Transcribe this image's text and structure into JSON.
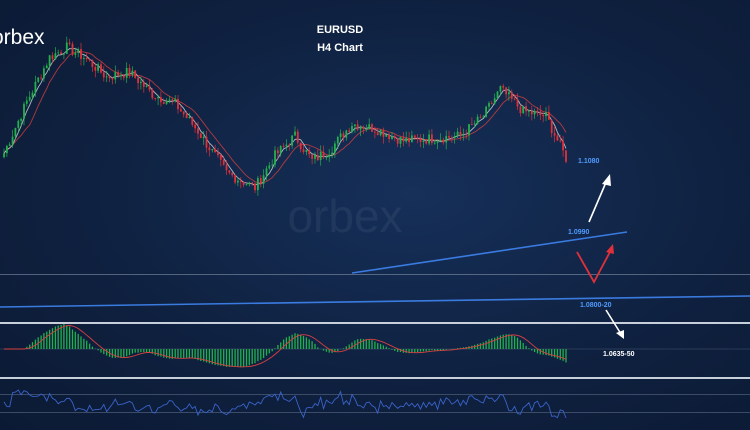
{
  "brand": {
    "logo_text": "orbex"
  },
  "chart_title": "EURUSD",
  "chart_subtitle": "H4 Chart",
  "colors": {
    "background": "#0f2140",
    "bull": "#22b14c",
    "bear": "#e0313a",
    "trendline": "#3a7be0",
    "target_label": "#4f9bff",
    "arrow_up": "#ffffff",
    "arrow_red": "#e0313a",
    "sma_red": "#d94040",
    "sma_white": "#d8dde6",
    "rsi_line": "#3a63c9"
  },
  "chart_data": {
    "type": "candlestick",
    "title": "EURUSD",
    "subtitle": "H4 Chart",
    "ylim": [
      1.055,
      1.118
    ],
    "price_levels": [
      {
        "label": "1.1080",
        "value": 1.108
      },
      {
        "label": "1.0990",
        "value": 1.099
      },
      {
        "label": "1.0800-20",
        "value": 1.081
      },
      {
        "label": "1.0635-50",
        "value": 1.0642
      }
    ],
    "trendlines": [
      {
        "name": "rising-support",
        "from": {
          "bar": 0.47,
          "price": 1.0882
        },
        "to": {
          "bar": 0.83,
          "price": 1.099
        }
      },
      {
        "name": "long-support",
        "from": {
          "bar": 0.0,
          "price": 1.078
        },
        "to": {
          "bar": 1.0,
          "price": 1.0808
        }
      }
    ],
    "waypoints": [
      [
        0,
        1.0885
      ],
      [
        8,
        1.099
      ],
      [
        16,
        1.108
      ],
      [
        22,
        1.11
      ],
      [
        28,
        1.108
      ],
      [
        36,
        1.104
      ],
      [
        44,
        1.105
      ],
      [
        52,
        1.1005
      ],
      [
        60,
        1.0985
      ],
      [
        68,
        1.093
      ],
      [
        78,
        1.0845
      ],
      [
        88,
        1.0815
      ],
      [
        95,
        1.088
      ],
      [
        102,
        1.092
      ],
      [
        108,
        1.087
      ],
      [
        114,
        1.089
      ],
      [
        122,
        1.0945
      ],
      [
        130,
        1.0935
      ],
      [
        140,
        1.091
      ],
      [
        150,
        1.0915
      ],
      [
        160,
        1.092
      ],
      [
        168,
        1.096
      ],
      [
        174,
        1.1015
      ],
      [
        182,
        1.097
      ],
      [
        190,
        1.096
      ],
      [
        197,
        1.0875
      ]
    ],
    "macd_panel": true,
    "rsi_panel": true,
    "grid": false
  }
}
